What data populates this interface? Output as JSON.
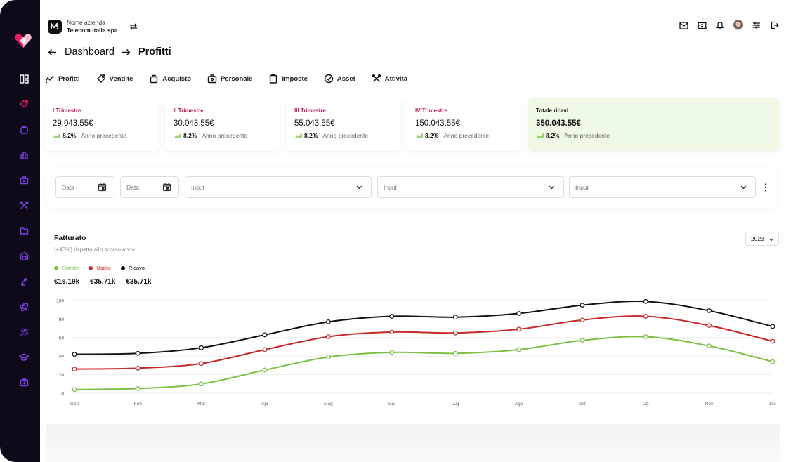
{
  "company": {
    "label": "Nome azienda",
    "name": "Telecom Italia spa"
  },
  "breadcrumb": {
    "parent": "Dashboard",
    "current": "Profitti"
  },
  "tabs": [
    {
      "label": "Profitti",
      "icon": "trend-icon"
    },
    {
      "label": "Vendite",
      "icon": "tag-icon"
    },
    {
      "label": "Acquisto",
      "icon": "bag-icon"
    },
    {
      "label": "Personale",
      "icon": "badge-icon"
    },
    {
      "label": "Imposte",
      "icon": "clipboard-icon"
    },
    {
      "label": "Asset",
      "icon": "check-circle-icon"
    },
    {
      "label": "Attività",
      "icon": "tools-icon"
    }
  ],
  "cards": [
    {
      "title": "I Trimestre",
      "value": "29.043.55€",
      "delta": "8.2%",
      "note": "Anno precedente"
    },
    {
      "title": "II Trimestre",
      "value": "30.043.55€",
      "delta": "8.2%",
      "note": "Anno precedente"
    },
    {
      "title": "III Trimestre",
      "value": "55.043.55€",
      "delta": "8.2%",
      "note": "Anno precedente"
    },
    {
      "title": "IV Trimestre",
      "value": "150.043.55€",
      "delta": "8.2%",
      "note": "Anno precedente"
    },
    {
      "title": "Totale ricavi",
      "value": "350.043.55€",
      "delta": "8.2%",
      "note": "Anno precedente"
    }
  ],
  "filters": {
    "date1": "Data",
    "date2": "Data",
    "input1": "Input",
    "input2": "Input",
    "input3": "Input"
  },
  "chart_panel": {
    "title": "Fatturato",
    "subtitle": "(+43%) rispetto allo scorso anno",
    "year": "2023",
    "legend": [
      "Entrate",
      "Uscite",
      "Ricavo"
    ],
    "totals": [
      "€16.19k",
      "€35.71k",
      "€35.71k"
    ]
  },
  "colors": {
    "entrate": "#7ac142",
    "uscite": "#c62828",
    "ricavo": "#111111",
    "accent": "#c2185b",
    "total_bg": "#eef9e6"
  },
  "chart_data": {
    "type": "line",
    "x": [
      "Gen",
      "Feb",
      "Mar",
      "Apr",
      "Mag",
      "Giu",
      "Lug",
      "Ago",
      "Set",
      "Ott",
      "Nov",
      "Dic"
    ],
    "ylim": [
      0,
      100
    ],
    "yticks": [
      0,
      20,
      40,
      60,
      80,
      100
    ],
    "grid": true,
    "legend_position": "top-left",
    "series": [
      {
        "name": "Entrate",
        "color": "#7ac142",
        "values": [
          4,
          5,
          10,
          25,
          39,
          44,
          43,
          47,
          57,
          61,
          51,
          34
        ]
      },
      {
        "name": "Uscite",
        "color": "#c62828",
        "values": [
          26,
          27,
          32,
          47,
          61,
          66,
          65,
          69,
          79,
          83,
          73,
          56
        ]
      },
      {
        "name": "Ricavo",
        "color": "#111111",
        "values": [
          42,
          43,
          49,
          63,
          77,
          83,
          82,
          86,
          95,
          99,
          89,
          72
        ]
      }
    ]
  }
}
